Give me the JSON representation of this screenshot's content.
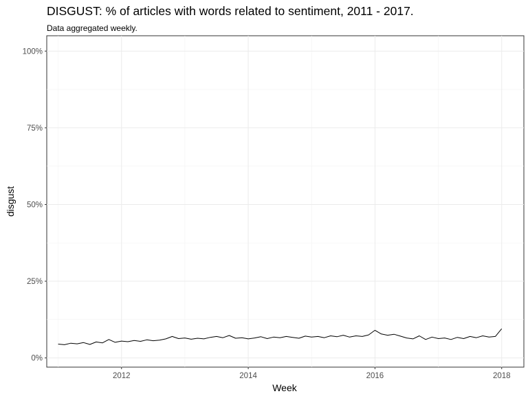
{
  "chart_data": {
    "type": "line",
    "title": "DISGUST: % of articles with words related to sentiment, 2011 - 2017.",
    "subtitle": "Data aggregated weekly.",
    "xlabel": "Week",
    "ylabel": "disgust",
    "xlim": [
      2010.82,
      2018.35
    ],
    "ylim": [
      -0.03,
      1.05
    ],
    "x_ticks": [
      2012,
      2014,
      2016,
      2018
    ],
    "y_ticks": [
      0,
      0.25,
      0.5,
      0.75,
      1.0
    ],
    "x_tick_labels": [
      "2012",
      "2014",
      "2016",
      "2018"
    ],
    "y_tick_labels": [
      "0%",
      "25%",
      "50%",
      "75%",
      "100%"
    ],
    "grid": true,
    "series": [
      {
        "color": "#000000",
        "x": [
          2011.0,
          2011.1,
          2011.2,
          2011.3,
          2011.4,
          2011.5,
          2011.6,
          2011.7,
          2011.8,
          2011.9,
          2012.0,
          2012.1,
          2012.2,
          2012.3,
          2012.4,
          2012.5,
          2012.6,
          2012.7,
          2012.8,
          2012.9,
          2013.0,
          2013.1,
          2013.2,
          2013.3,
          2013.4,
          2013.5,
          2013.6,
          2013.7,
          2013.8,
          2013.9,
          2014.0,
          2014.1,
          2014.2,
          2014.3,
          2014.4,
          2014.5,
          2014.6,
          2014.7,
          2014.8,
          2014.9,
          2015.0,
          2015.1,
          2015.2,
          2015.3,
          2015.4,
          2015.5,
          2015.6,
          2015.7,
          2015.8,
          2015.9,
          2016.0,
          2016.1,
          2016.2,
          2016.3,
          2016.4,
          2016.5,
          2016.6,
          2016.7,
          2016.8,
          2016.9,
          2017.0,
          2017.1,
          2017.2,
          2017.3,
          2017.4,
          2017.5,
          2017.6,
          2017.7,
          2017.8,
          2017.9,
          2018.0
        ],
        "values": [
          0.045,
          0.043,
          0.048,
          0.046,
          0.05,
          0.044,
          0.052,
          0.049,
          0.06,
          0.051,
          0.055,
          0.053,
          0.057,
          0.054,
          0.059,
          0.056,
          0.058,
          0.062,
          0.07,
          0.063,
          0.065,
          0.061,
          0.064,
          0.062,
          0.067,
          0.07,
          0.066,
          0.073,
          0.064,
          0.066,
          0.062,
          0.065,
          0.069,
          0.063,
          0.068,
          0.066,
          0.07,
          0.067,
          0.064,
          0.071,
          0.068,
          0.07,
          0.066,
          0.072,
          0.069,
          0.074,
          0.068,
          0.072,
          0.07,
          0.075,
          0.09,
          0.078,
          0.074,
          0.077,
          0.071,
          0.065,
          0.062,
          0.072,
          0.06,
          0.068,
          0.063,
          0.065,
          0.06,
          0.067,
          0.063,
          0.07,
          0.066,
          0.072,
          0.068,
          0.07,
          0.095
        ]
      }
    ]
  }
}
